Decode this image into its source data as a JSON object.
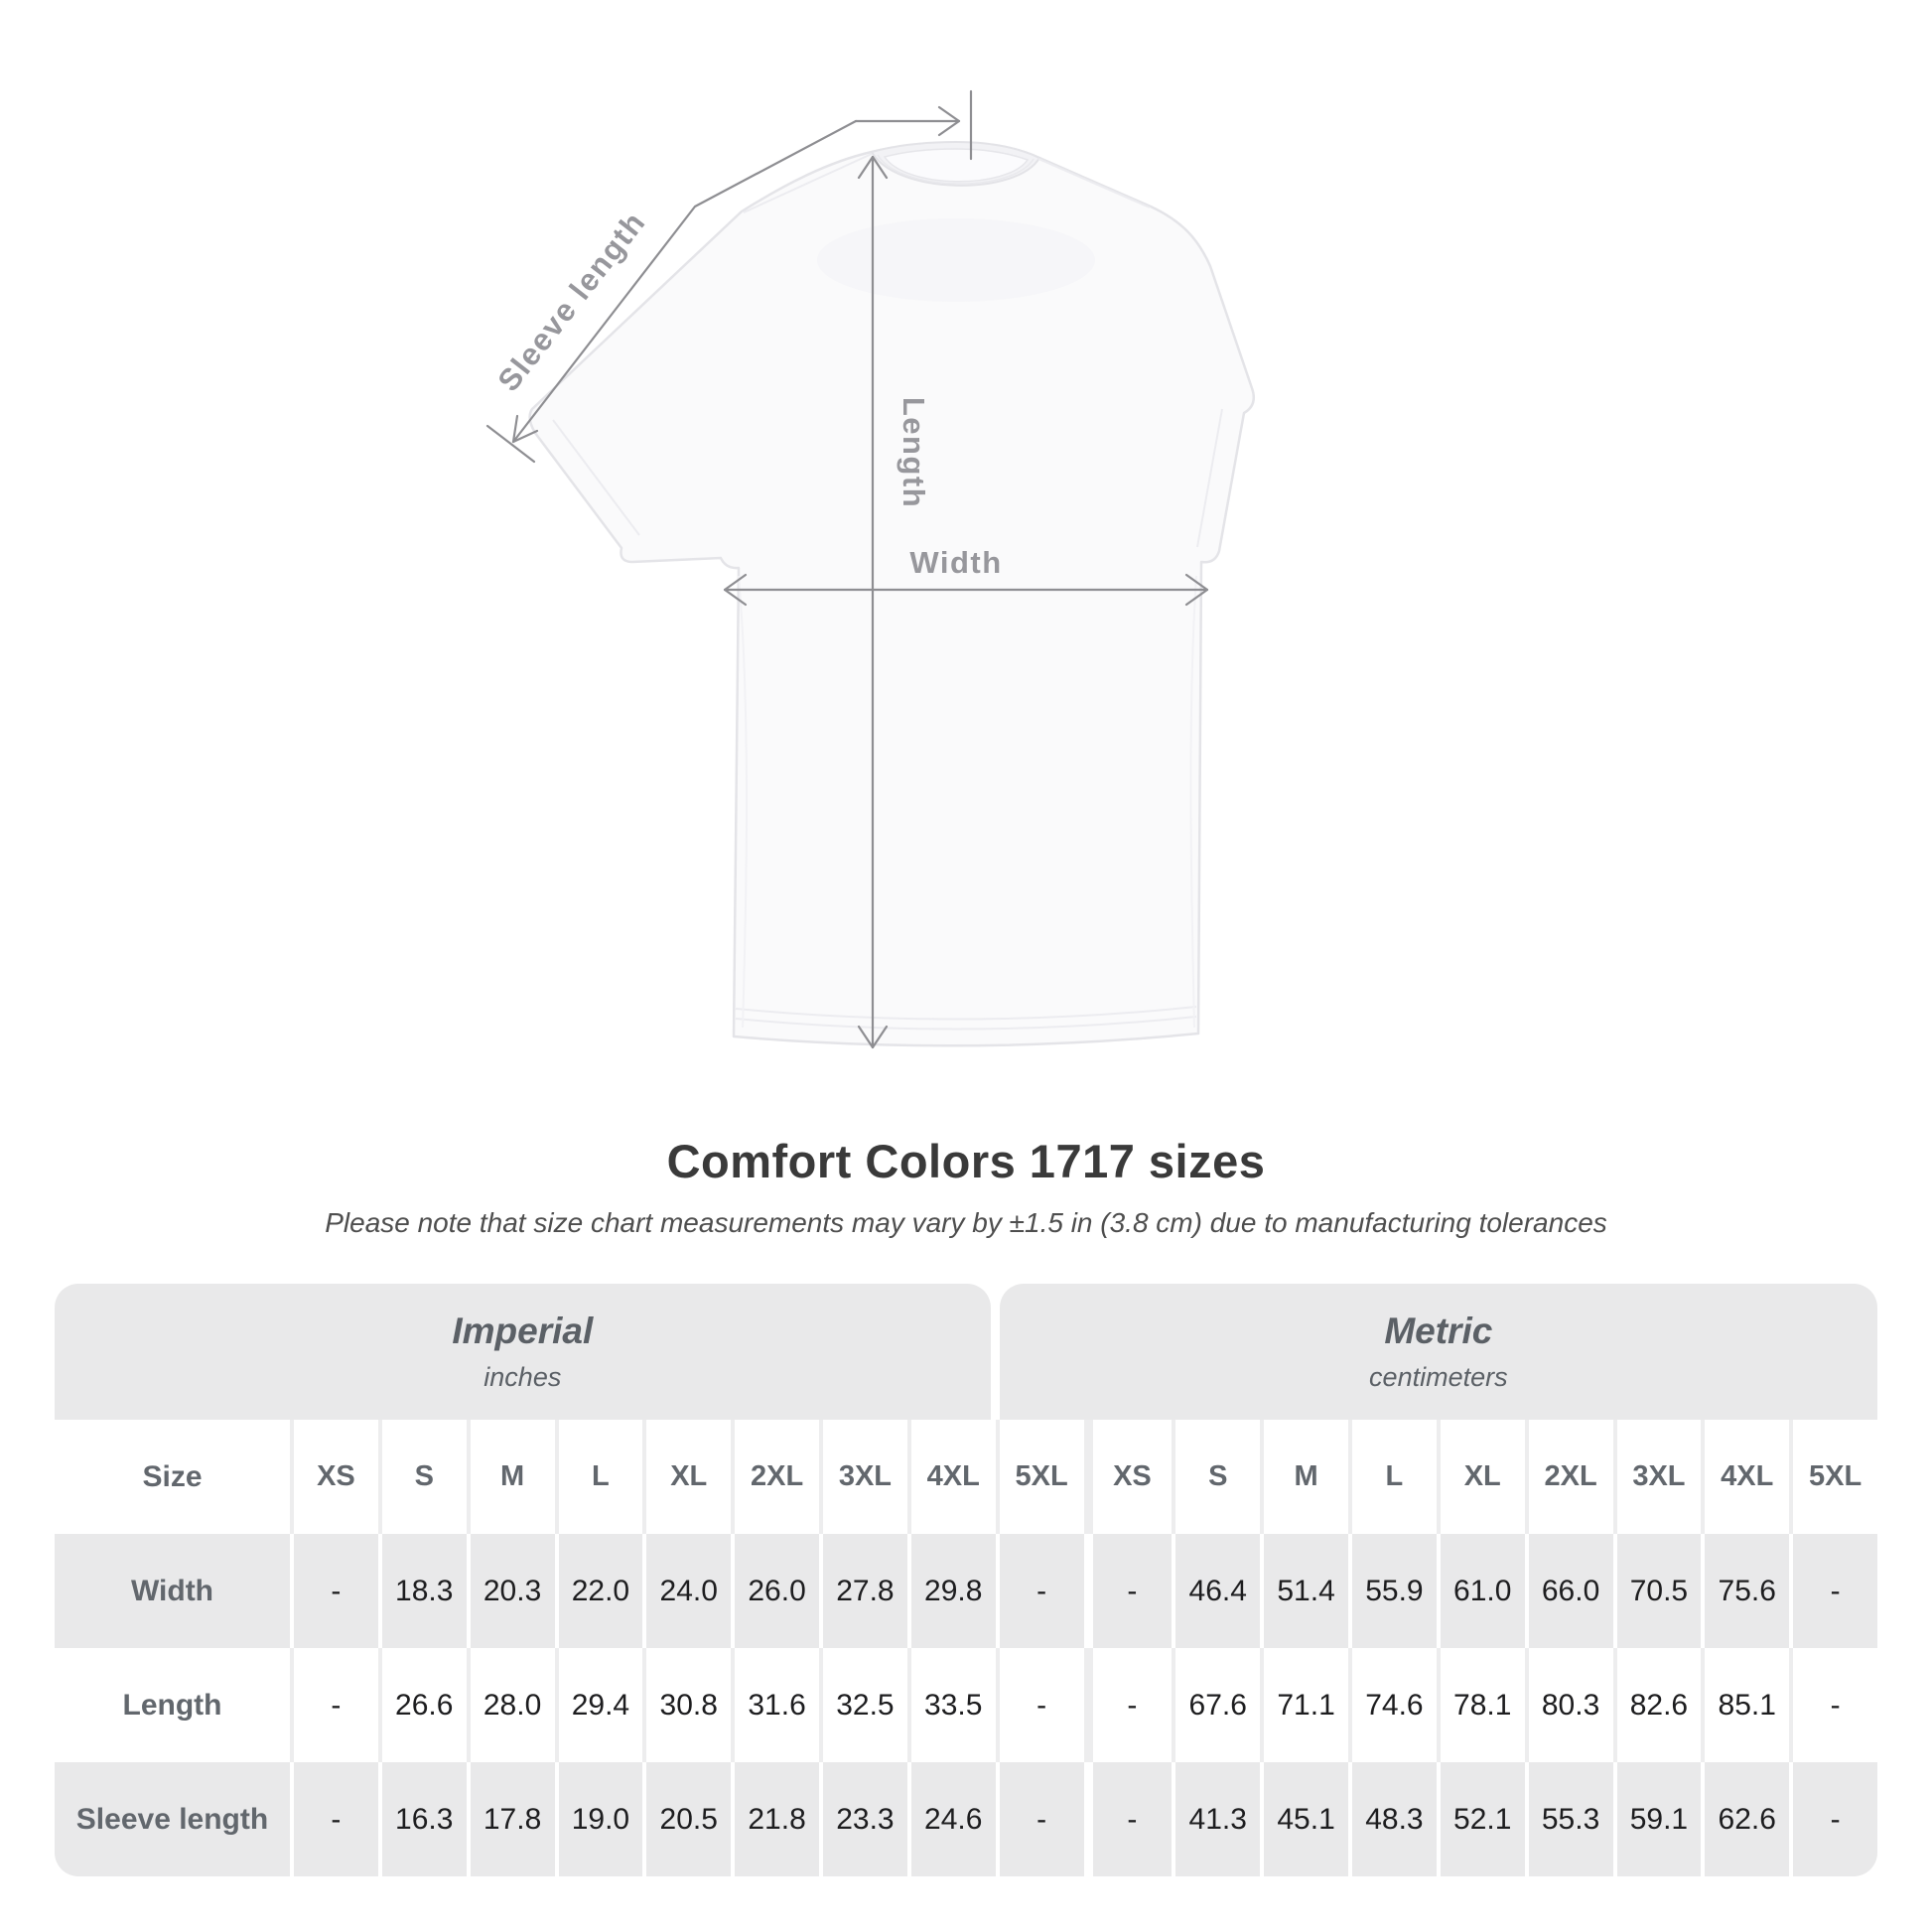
{
  "title": "Comfort Colors 1717 sizes",
  "subtitle": "Please note that size chart measurements may vary by ±1.5 in (3.8 cm) due to manufacturing tolerances",
  "diagram": {
    "sleeve_length_label": "Sleeve length",
    "length_label": "Length",
    "width_label": "Width"
  },
  "table": {
    "sections": [
      {
        "label": "Imperial",
        "sublabel": "inches"
      },
      {
        "label": "Metric",
        "sublabel": "centimeters"
      }
    ],
    "size_col_header": "Size",
    "sizes": [
      "XS",
      "S",
      "M",
      "L",
      "XL",
      "2XL",
      "3XL",
      "4XL",
      "5XL"
    ],
    "rows": [
      {
        "label": "Width",
        "imperial": [
          "-",
          "18.3",
          "20.3",
          "22.0",
          "24.0",
          "26.0",
          "27.8",
          "29.8",
          "-"
        ],
        "metric": [
          "-",
          "46.4",
          "51.4",
          "55.9",
          "61.0",
          "66.0",
          "70.5",
          "75.6",
          "-"
        ]
      },
      {
        "label": "Length",
        "imperial": [
          "-",
          "26.6",
          "28.0",
          "29.4",
          "30.8",
          "31.6",
          "32.5",
          "33.5",
          "-"
        ],
        "metric": [
          "-",
          "67.6",
          "71.1",
          "74.6",
          "78.1",
          "80.3",
          "82.6",
          "85.1",
          "-"
        ]
      },
      {
        "label": "Sleeve length",
        "imperial": [
          "-",
          "16.3",
          "17.8",
          "19.0",
          "20.5",
          "21.8",
          "23.3",
          "24.6",
          "-"
        ],
        "metric": [
          "-",
          "41.3",
          "45.1",
          "48.3",
          "52.1",
          "55.3",
          "59.1",
          "62.6",
          "-"
        ]
      }
    ]
  },
  "colors": {
    "band_gray": "#e9e9ea",
    "row_gray": "#e9e9ea",
    "heading_text": "#5b6066",
    "value_text": "#1d1d1f",
    "diagram_gray": "#97979c",
    "title_text": "#3a3a3a"
  },
  "chart_data": {
    "type": "table",
    "title": "Comfort Colors 1717 sizes",
    "note": "Measurements may vary by ±1.5 in (3.8 cm) due to manufacturing tolerances",
    "columns": [
      "XS",
      "S",
      "M",
      "L",
      "XL",
      "2XL",
      "3XL",
      "4XL",
      "5XL"
    ],
    "units": {
      "imperial": "inches",
      "metric": "centimeters"
    },
    "imperial": {
      "Width": [
        null,
        18.3,
        20.3,
        22.0,
        24.0,
        26.0,
        27.8,
        29.8,
        null
      ],
      "Length": [
        null,
        26.6,
        28.0,
        29.4,
        30.8,
        31.6,
        32.5,
        33.5,
        null
      ],
      "Sleeve length": [
        null,
        16.3,
        17.8,
        19.0,
        20.5,
        21.8,
        23.3,
        24.6,
        null
      ]
    },
    "metric": {
      "Width": [
        null,
        46.4,
        51.4,
        55.9,
        61.0,
        66.0,
        70.5,
        75.6,
        null
      ],
      "Length": [
        null,
        67.6,
        71.1,
        74.6,
        78.1,
        80.3,
        82.6,
        85.1,
        null
      ],
      "Sleeve length": [
        null,
        41.3,
        45.1,
        48.3,
        52.1,
        55.3,
        59.1,
        62.6,
        null
      ]
    }
  }
}
